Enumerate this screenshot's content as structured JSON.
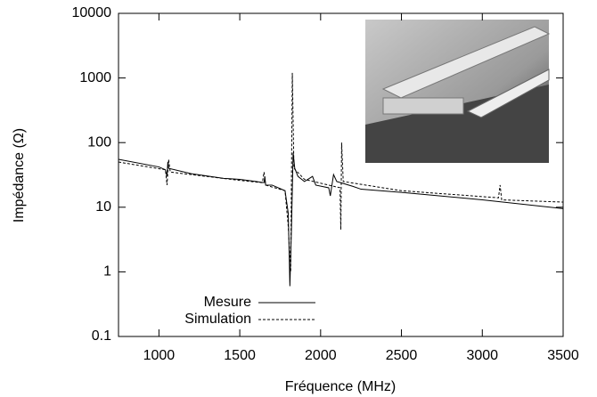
{
  "chart_data": {
    "type": "line",
    "xlabel": "Fréquence (MHz)",
    "ylabel": "Impédance (Ω)",
    "xlim": [
      750,
      3500
    ],
    "xticks": [
      1000,
      1500,
      2000,
      2500,
      3000,
      3500
    ],
    "ylim": [
      0.1,
      10000
    ],
    "yticks": [
      0.1,
      1,
      10,
      100,
      1000,
      10000
    ],
    "ylog": true,
    "legend": "lower left",
    "series": [
      {
        "name": "Mesure",
        "color": "#000000",
        "dashed": false,
        "x": [
          750,
          1000,
          1040,
          1050,
          1055,
          1060,
          1200,
          1400,
          1500,
          1600,
          1650,
          1655,
          1660,
          1700,
          1780,
          1800,
          1810,
          1820,
          1830,
          1840,
          1860,
          1900,
          1950,
          1970,
          2050,
          2060,
          2080,
          2100,
          2200,
          2250,
          2500,
          3000,
          3500
        ],
        "values": [
          55,
          42,
          38,
          30,
          50,
          40,
          33,
          28,
          27,
          25,
          24,
          30,
          22,
          22,
          18,
          8,
          0.6,
          5,
          70,
          40,
          30,
          25,
          30,
          22,
          20,
          15,
          32,
          25,
          21,
          19,
          17,
          13,
          9.5
        ]
      },
      {
        "name": "Simulation",
        "color": "#000000",
        "dashed": true,
        "x": [
          750,
          1040,
          1050,
          1060,
          1070,
          1500,
          1640,
          1650,
          1660,
          1780,
          1800,
          1815,
          1825,
          1835,
          1900,
          2120,
          2125,
          2130,
          2140,
          2500,
          3100,
          3110,
          3120,
          3500
        ],
        "values": [
          50,
          38,
          22,
          55,
          35,
          26,
          24,
          35,
          22,
          18,
          5,
          1,
          1200,
          40,
          27,
          20,
          4.5,
          100,
          25,
          18,
          14,
          22,
          13,
          12
        ]
      }
    ]
  }
}
